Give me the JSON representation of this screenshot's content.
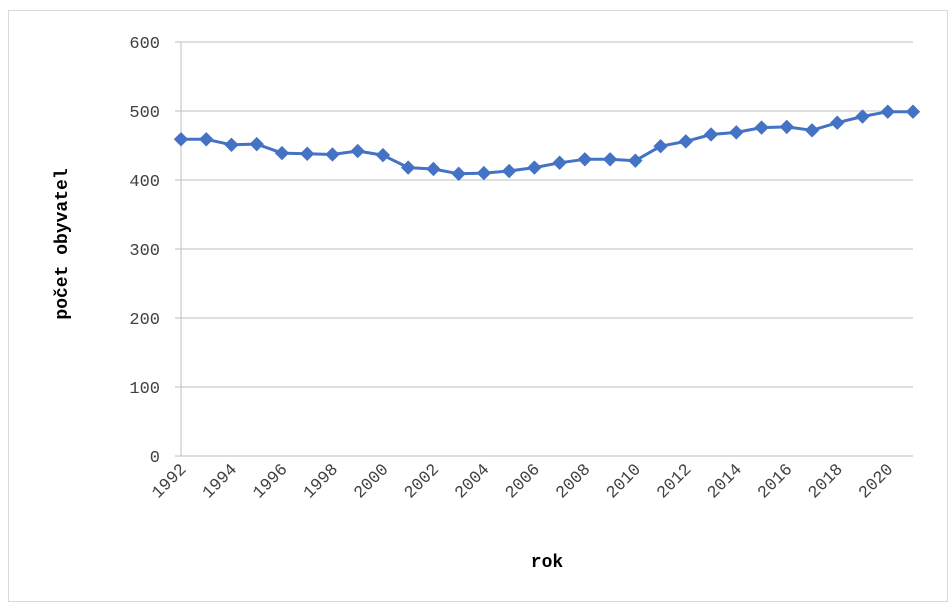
{
  "chart_data": {
    "type": "line",
    "title": "",
    "xlabel": "rok",
    "ylabel": "počet obyvatel",
    "ylim": [
      0,
      600
    ],
    "yticks": [
      0,
      100,
      200,
      300,
      400,
      500,
      600
    ],
    "x_tick_labels": [
      "1992",
      "1994",
      "1996",
      "1998",
      "2000",
      "2002",
      "2004",
      "2006",
      "2008",
      "2010",
      "2012",
      "2014",
      "2016",
      "2018",
      "2020"
    ],
    "grid": true,
    "legend": "none",
    "series": [
      {
        "marker": "diamond",
        "color": "#4472C4",
        "x": [
          1992,
          1993,
          1994,
          1995,
          1996,
          1997,
          1998,
          1999,
          2000,
          2001,
          2002,
          2003,
          2004,
          2005,
          2006,
          2007,
          2008,
          2009,
          2010,
          2011,
          2012,
          2013,
          2014,
          2015,
          2016,
          2017,
          2018,
          2019,
          2020,
          2021
        ],
        "values": [
          459,
          459,
          451,
          452,
          439,
          438,
          437,
          442,
          436,
          418,
          416,
          409,
          410,
          413,
          418,
          425,
          430,
          430,
          428,
          449,
          456,
          466,
          469,
          476,
          477,
          472,
          483,
          492,
          499,
          499
        ]
      }
    ]
  }
}
